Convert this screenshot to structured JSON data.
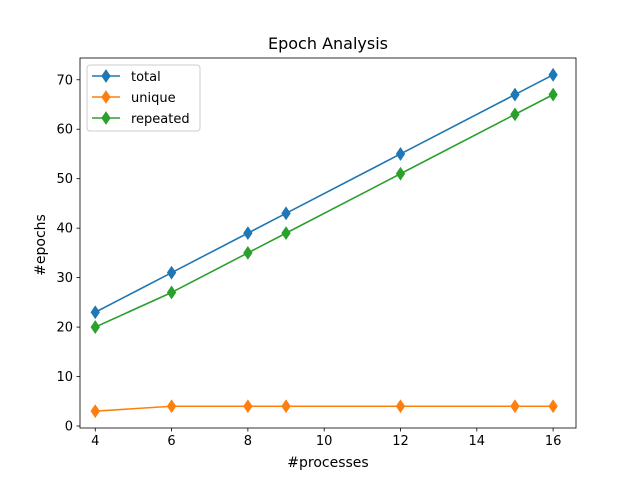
{
  "chart_data": {
    "type": "line",
    "title": "Epoch Analysis",
    "xlabel": "#processes",
    "ylabel": "#epochs",
    "x": [
      4,
      6,
      8,
      9,
      12,
      15,
      16
    ],
    "xlim": [
      3.6,
      16.6
    ],
    "ylim": [
      -0.4,
      74.4
    ],
    "xticks": [
      4,
      6,
      8,
      10,
      12,
      14,
      16
    ],
    "yticks": [
      0,
      10,
      20,
      30,
      40,
      50,
      60,
      70
    ],
    "marker": "diamond",
    "grid": false,
    "legend_position": "top-left",
    "series": [
      {
        "name": "total",
        "color": "#1f77b4",
        "values": [
          23,
          31,
          39,
          43,
          55,
          67,
          71
        ]
      },
      {
        "name": "unique",
        "color": "#ff7f0e",
        "values": [
          3,
          4,
          4,
          4,
          4,
          4,
          4
        ]
      },
      {
        "name": "repeated",
        "color": "#2ca02c",
        "values": [
          20,
          27,
          35,
          39,
          51,
          63,
          67
        ]
      }
    ]
  }
}
